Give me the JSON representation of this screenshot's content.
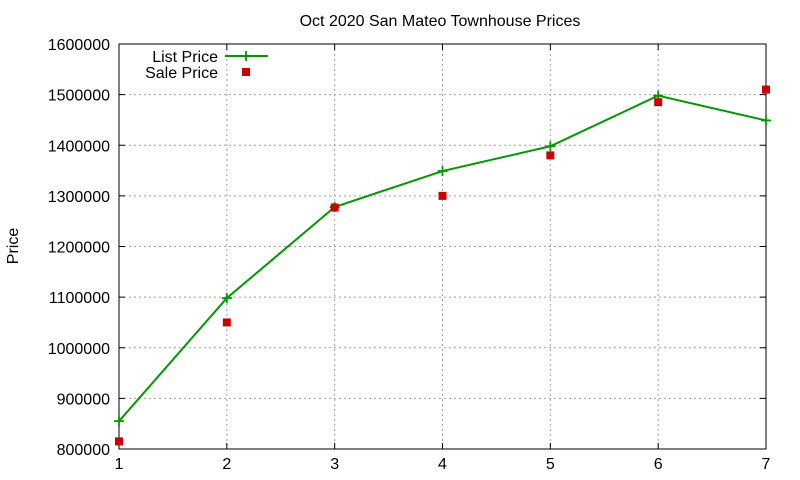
{
  "chart_data": {
    "type": "scatter",
    "title": "Oct 2020 San Mateo Townhouse Prices",
    "xlabel": "",
    "ylabel": "Price",
    "xlim": [
      1,
      7
    ],
    "ylim": [
      800000,
      1600000
    ],
    "x_ticks": [
      "1",
      "2",
      "3",
      "4",
      "5",
      "6",
      "7"
    ],
    "y_ticks": [
      "800000",
      "900000",
      "1000000",
      "1100000",
      "1200000",
      "1300000",
      "1400000",
      "1500000",
      "1600000"
    ],
    "grid": true,
    "legend_position": "top-left",
    "series": [
      {
        "name": "List Price",
        "style": "linespoints",
        "color": "#009900",
        "x": [
          1,
          2,
          3,
          4,
          5,
          6,
          7
        ],
        "values": [
          855000,
          1098000,
          1278000,
          1349000,
          1398000,
          1498000,
          1449000
        ]
      },
      {
        "name": "Sale Price",
        "style": "points",
        "color": "#cc0000",
        "x": [
          1,
          2,
          3,
          4,
          5,
          6,
          7
        ],
        "values": [
          815000,
          1050000,
          1277000,
          1300000,
          1380000,
          1485000,
          1510000
        ]
      }
    ]
  }
}
